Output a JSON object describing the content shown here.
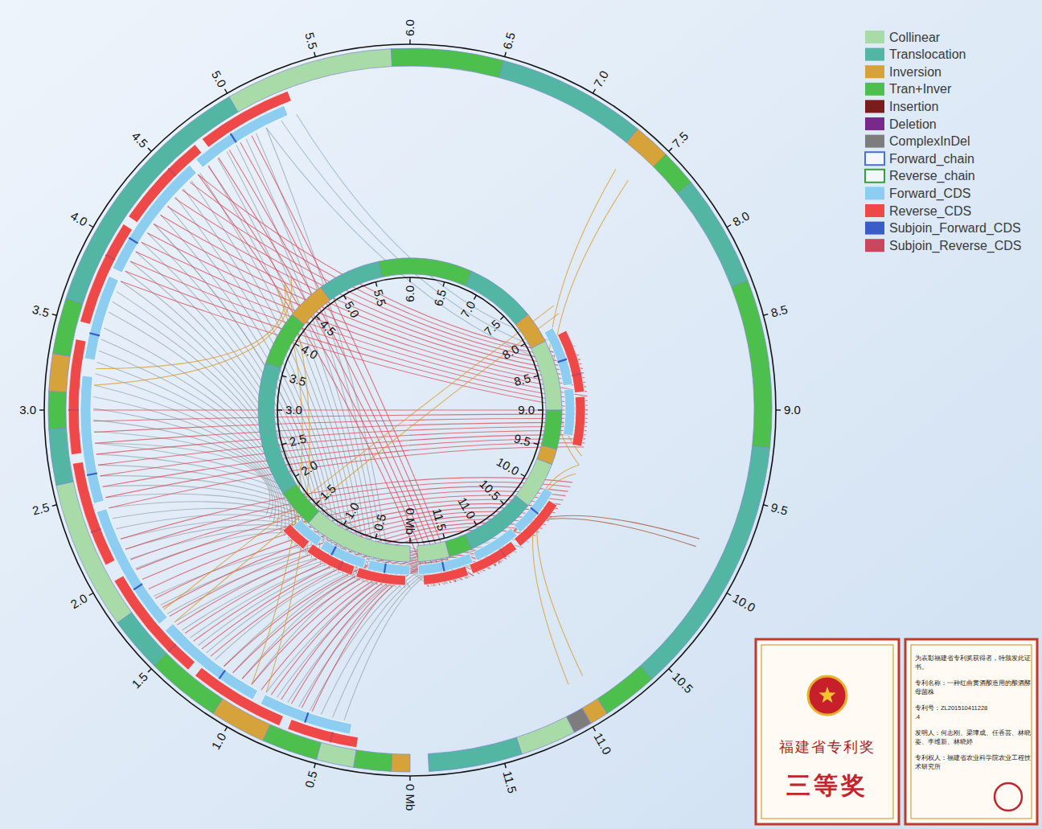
{
  "chart_data": {
    "type": "circos",
    "legend": "top-right",
    "legend_items": [
      {
        "name": "Collinear",
        "color": "#a9dba9",
        "marker": "filled"
      },
      {
        "name": "Translocation",
        "color": "#52b6a2",
        "marker": "filled"
      },
      {
        "name": "Inversion",
        "color": "#d6a23a",
        "marker": "filled"
      },
      {
        "name": "Tran+Inver",
        "color": "#4dbf4d",
        "marker": "filled"
      },
      {
        "name": "Insertion",
        "color": "#7a1c1c",
        "marker": "filled"
      },
      {
        "name": "Deletion",
        "color": "#77298c",
        "marker": "filled"
      },
      {
        "name": "ComplexInDel",
        "color": "#7d7d7d",
        "marker": "filled"
      },
      {
        "name": "Forward_chain",
        "color": "#4a6fd6",
        "marker": "outline"
      },
      {
        "name": "Reverse_chain",
        "color": "#3a9e3a",
        "marker": "outline"
      },
      {
        "name": "Forward_CDS",
        "color": "#8ecdf2",
        "marker": "filled"
      },
      {
        "name": "Reverse_CDS",
        "color": "#ef4848",
        "marker": "filled"
      },
      {
        "name": "Subjoin_Forward_CDS",
        "color": "#3a5cc6",
        "marker": "filled"
      },
      {
        "name": "Subjoin_Reverse_CDS",
        "color": "#c9465c",
        "marker": "filled"
      }
    ],
    "outer": {
      "xlim": [
        0,
        12
      ],
      "xticks": [
        {
          "value": 0,
          "label": "0 Mb"
        },
        0.5,
        {
          "value": 1,
          "label": "1.0"
        },
        1.5,
        {
          "value": 2,
          "label": "2.0"
        },
        2.5,
        {
          "value": 3,
          "label": "3.0"
        },
        3.5,
        {
          "value": 4,
          "label": "4.0"
        },
        4.5,
        {
          "value": 5,
          "label": "5.0"
        },
        5.5,
        {
          "value": 6,
          "label": "6.0"
        },
        6.5,
        {
          "value": 7,
          "label": "7.0"
        },
        7.5,
        {
          "value": 8,
          "label": "8.0"
        },
        8.5,
        {
          "value": 9,
          "label": "9.0"
        },
        9.5,
        {
          "value": 10,
          "label": "10.0"
        },
        10.5,
        {
          "value": 11,
          "label": "11.0"
        },
        11.5
      ],
      "segments": [
        {
          "start": 0,
          "end": 0.1,
          "kind": "Inversion"
        },
        {
          "start": 0.1,
          "end": 0.3,
          "kind": "Tran+Inver"
        },
        {
          "start": 0.3,
          "end": 0.5,
          "kind": "Collinear"
        },
        {
          "start": 0.5,
          "end": 0.8,
          "kind": "Tran+Inver"
        },
        {
          "start": 0.8,
          "end": 1.1,
          "kind": "Inversion"
        },
        {
          "start": 1.1,
          "end": 1.5,
          "kind": "Tran+Inver"
        },
        {
          "start": 1.5,
          "end": 1.8,
          "kind": "Translocation"
        },
        {
          "start": 1.8,
          "end": 2.6,
          "kind": "Collinear"
        },
        {
          "start": 2.6,
          "end": 2.9,
          "kind": "Translocation"
        },
        {
          "start": 2.9,
          "end": 3.1,
          "kind": "Tran+Inver"
        },
        {
          "start": 3.1,
          "end": 3.3,
          "kind": "Inversion"
        },
        {
          "start": 3.3,
          "end": 3.6,
          "kind": "Tran+Inver"
        },
        {
          "start": 3.6,
          "end": 5.0,
          "kind": "Translocation"
        },
        {
          "start": 5.0,
          "end": 5.9,
          "kind": "Collinear"
        },
        {
          "start": 5.9,
          "end": 6.5,
          "kind": "Tran+Inver"
        },
        {
          "start": 6.5,
          "end": 7.3,
          "kind": "Translocation"
        },
        {
          "start": 7.3,
          "end": 7.5,
          "kind": "Inversion"
        },
        {
          "start": 7.5,
          "end": 7.7,
          "kind": "Tran+Inver"
        },
        {
          "start": 7.7,
          "end": 8.3,
          "kind": "Translocation"
        },
        {
          "start": 8.3,
          "end": 9.2,
          "kind": "Tran+Inver"
        },
        {
          "start": 9.2,
          "end": 10.6,
          "kind": "Translocation"
        },
        {
          "start": 10.6,
          "end": 10.9,
          "kind": "Tran+Inver"
        },
        {
          "start": 10.9,
          "end": 11.0,
          "kind": "Inversion"
        },
        {
          "start": 11.0,
          "end": 11.1,
          "kind": "ComplexInDel"
        },
        {
          "start": 11.1,
          "end": 11.4,
          "kind": "Collinear"
        },
        {
          "start": 11.4,
          "end": 11.9,
          "kind": "Translocation"
        }
      ],
      "cds": [
        {
          "kind": "Forward_CDS",
          "blocks": [
            [
              0.35,
              0.9
            ],
            [
              0.95,
              1.6
            ],
            [
              1.65,
              2.4
            ],
            [
              2.45,
              3.2
            ],
            [
              3.3,
              3.8
            ],
            [
              3.85,
              4.6
            ],
            [
              4.65,
              5.25
            ]
          ]
        },
        {
          "kind": "Reverse_CDS",
          "blocks": [
            [
              0.3,
              0.7
            ],
            [
              0.75,
              1.3
            ],
            [
              1.35,
              2.0
            ],
            [
              2.1,
              2.7
            ],
            [
              2.75,
              3.4
            ],
            [
              3.5,
              4.1
            ],
            [
              4.15,
              4.7
            ],
            [
              4.75,
              5.3
            ]
          ]
        }
      ],
      "subjoin": [
        {
          "kind": "Subjoin_Forward_CDS",
          "positions": [
            0.62,
            1.18,
            1.9,
            2.62,
            3.45,
            4.05,
            4.9
          ]
        },
        {
          "kind": "Subjoin_Reverse_CDS",
          "positions": [
            0.45,
            1.5,
            2.3,
            3.0,
            3.9,
            4.5
          ]
        }
      ]
    },
    "inner": {
      "xlim": [
        0,
        12
      ],
      "xticks": [
        {
          "value": 0,
          "label": "0 Mb"
        },
        0.5,
        {
          "value": 1,
          "label": "1.0"
        },
        1.5,
        {
          "value": 2,
          "label": "2.0"
        },
        2.5,
        {
          "value": 3,
          "label": "3.0"
        },
        3.5,
        {
          "value": 4,
          "label": "4.0"
        },
        4.5,
        {
          "value": 5,
          "label": "5.0"
        },
        5.5,
        {
          "value": 6,
          "label": "6.0"
        },
        6.5,
        {
          "value": 7,
          "label": "7.0"
        },
        7.5,
        {
          "value": 8,
          "label": "8.0"
        },
        8.5,
        {
          "value": 9,
          "label": "9.0"
        },
        9.5,
        {
          "value": 10,
          "label": "10.0"
        },
        10.5,
        {
          "value": 11,
          "label": "11.0"
        },
        11.5
      ],
      "segments": [
        {
          "start": 0,
          "end": 1.4,
          "kind": "Collinear"
        },
        {
          "start": 1.4,
          "end": 1.9,
          "kind": "Tran+Inver"
        },
        {
          "start": 1.9,
          "end": 3.6,
          "kind": "Translocation"
        },
        {
          "start": 3.6,
          "end": 4.3,
          "kind": "Tran+Inver"
        },
        {
          "start": 4.3,
          "end": 4.8,
          "kind": "Inversion"
        },
        {
          "start": 4.8,
          "end": 5.6,
          "kind": "Translocation"
        },
        {
          "start": 5.6,
          "end": 6.8,
          "kind": "Tran+Inver"
        },
        {
          "start": 6.8,
          "end": 7.7,
          "kind": "Translocation"
        },
        {
          "start": 7.7,
          "end": 8.1,
          "kind": "Inversion"
        },
        {
          "start": 8.1,
          "end": 9.0,
          "kind": "Collinear"
        },
        {
          "start": 9.0,
          "end": 9.5,
          "kind": "Tran+Inver"
        },
        {
          "start": 9.5,
          "end": 9.7,
          "kind": "Inversion"
        },
        {
          "start": 9.7,
          "end": 10.3,
          "kind": "Collinear"
        },
        {
          "start": 10.3,
          "end": 11.2,
          "kind": "Translocation"
        },
        {
          "start": 11.2,
          "end": 11.5,
          "kind": "Tran+Inver"
        },
        {
          "start": 11.5,
          "end": 11.9,
          "kind": "Collinear"
        }
      ],
      "cds": [
        {
          "kind": "Forward_CDS",
          "blocks": [
            [
              0.0,
              0.5
            ],
            [
              0.55,
              1.1
            ],
            [
              1.15,
              1.5
            ],
            [
              8.0,
              8.7
            ],
            [
              8.75,
              9.3
            ],
            [
              10.0,
              10.6
            ],
            [
              10.65,
              11.2
            ],
            [
              11.25,
              11.9
            ]
          ]
        },
        {
          "kind": "Reverse_CDS",
          "blocks": [
            [
              0.05,
              0.6
            ],
            [
              0.65,
              1.2
            ],
            [
              1.25,
              1.55
            ],
            [
              8.1,
              8.8
            ],
            [
              8.85,
              9.4
            ],
            [
              10.1,
              10.7
            ],
            [
              10.75,
              11.3
            ],
            [
              11.35,
              11.85
            ]
          ]
        }
      ],
      "subjoin": [
        {
          "kind": "Subjoin_Forward_CDS",
          "positions": [
            0.3,
            0.95,
            8.4,
            10.3,
            11.6
          ]
        },
        {
          "kind": "Subjoin_Reverse_CDS",
          "positions": [
            0.8,
            8.6,
            10.9
          ]
        }
      ]
    },
    "links": [
      {
        "outer": [
          4.2,
          5.1
        ],
        "inner": [
          0.2,
          0.9
        ],
        "color": "#9ba6ad"
      },
      {
        "outer": [
          3.6,
          4.2
        ],
        "inner": [
          0.9,
          1.4
        ],
        "color": "#9ba6ad"
      },
      {
        "outer": [
          2.0,
          2.8
        ],
        "inner": [
          0.0,
          0.6
        ],
        "color": "#9ba6ad"
      },
      {
        "outer": [
          1.0,
          1.8
        ],
        "inner": [
          11.3,
          11.8
        ],
        "color": "#9ba6ad"
      },
      {
        "outer": [
          0.4,
          0.9
        ],
        "inner": [
          10.6,
          11.2
        ],
        "color": "#9ba6ad"
      },
      {
        "outer": [
          2.8,
          3.5
        ],
        "inner": [
          1.2,
          1.8
        ],
        "color": "#9ba6ad"
      },
      {
        "outer": [
          5.1,
          5.3
        ],
        "inner": [
          8.3,
          8.6
        ],
        "color": "#8fb0c8"
      },
      {
        "outer": [
          3.8,
          4.6
        ],
        "inner": [
          8.4,
          9.0
        ],
        "color": "#d94a55"
      },
      {
        "outer": [
          1.3,
          2.2
        ],
        "inner": [
          9.8,
          10.5
        ],
        "color": "#d94a55"
      },
      {
        "outer": [
          2.4,
          3.0
        ],
        "inner": [
          9.0,
          9.4
        ],
        "color": "#d94a55"
      },
      {
        "outer": [
          0.6,
          1.2
        ],
        "inner": [
          10.9,
          11.5
        ],
        "color": "#d94a55"
      },
      {
        "outer": [
          4.6,
          5.0
        ],
        "inner": [
          11.5,
          11.8
        ],
        "color": "#d94a55"
      },
      {
        "outer": [
          7.35,
          7.45
        ],
        "inner": [
          9.5,
          9.6
        ],
        "color": "#d99a2b"
      },
      {
        "outer": [
          10.9,
          11.0
        ],
        "inner": [
          9.6,
          9.7
        ],
        "color": "#d99a2b"
      },
      {
        "outer": [
          3.15,
          3.25
        ],
        "inner": [
          4.5,
          4.6
        ],
        "color": "#d99a2b"
      },
      {
        "outer": [
          1.6,
          1.7
        ],
        "inner": [
          7.8,
          7.9
        ],
        "color": "#d99a2b"
      },
      {
        "outer": [
          0.9,
          1.0
        ],
        "inner": [
          4.4,
          4.5
        ],
        "color": "#d99a2b"
      },
      {
        "outer": [
          9.8,
          9.85
        ],
        "inner": [
          11.0,
          11.05
        ],
        "color": "#a0522d"
      }
    ]
  },
  "certificate": {
    "left": {
      "title": "福建省专利奖",
      "award": "三等奖"
    },
    "right": {
      "lines": [
        "为表彰福建省专利奖获得者，特颁发此证书。",
        "专利名称：一种红曲黄酒酿造用的酿酒酵母菌株",
        "专利号：ZL201510411228.4",
        "发明人：何志刚、梁璋成、任香芸、林晓姿、李维新、林晓婷",
        "专利权人：福建省农业科学院农业工程技术研究所"
      ]
    }
  }
}
